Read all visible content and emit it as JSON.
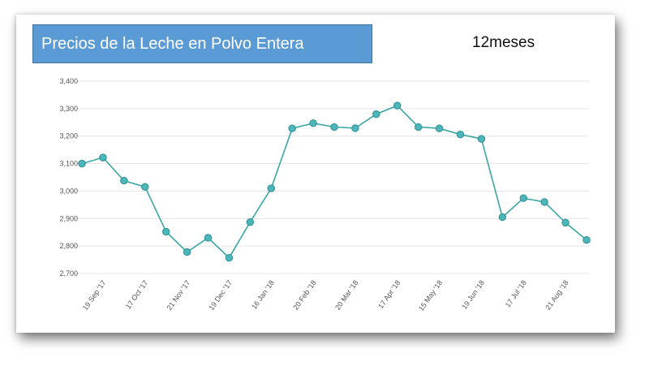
{
  "header": {
    "title": "Precios de la Leche en Polvo Entera",
    "period": "12meses"
  },
  "chart_data": {
    "type": "line",
    "title": "Precios de la Leche en Polvo Entera",
    "xlabel": "",
    "ylabel": "",
    "ylim": [
      2700,
      3400
    ],
    "y_ticks": [
      2700,
      2800,
      2900,
      3000,
      3100,
      3200,
      3300,
      3400
    ],
    "y_tick_labels": [
      "2,700",
      "2,800",
      "2,900",
      "3,000",
      "3,100",
      "3,200",
      "3,300",
      "3,400"
    ],
    "x_tick_labels": [
      "19 Sep '17",
      "17 Oct '17",
      "21 Nov '17",
      "19 Dec '17",
      "16 Jan '18",
      "20 Feb '18",
      "20 Mar '18",
      "17 Apr '18",
      "15 May '18",
      "19 Jun '18",
      "17 Jul '18",
      "21 Aug '18"
    ],
    "x_tick_label_positions": [
      1,
      3,
      5,
      7,
      9,
      11,
      13,
      15,
      17,
      19,
      21,
      23
    ],
    "grid": true,
    "legend": "none",
    "series": [
      {
        "values": [
          3100,
          3122,
          3038,
          3015,
          2852,
          2778,
          2830,
          2757,
          2887,
          3010,
          3228,
          3247,
          3233,
          3229,
          3280,
          3311,
          3233,
          3228,
          3206,
          3190,
          2905,
          2974,
          2960,
          2885,
          2822
        ],
        "color": "#3aa6a6"
      }
    ],
    "colors": {
      "line": "#3aa6a6",
      "marker_fill": "#4db6ba",
      "marker_stroke": "#2f8f92",
      "grid": "#e3e3e3",
      "title_bg": "#5b9bd5"
    }
  }
}
